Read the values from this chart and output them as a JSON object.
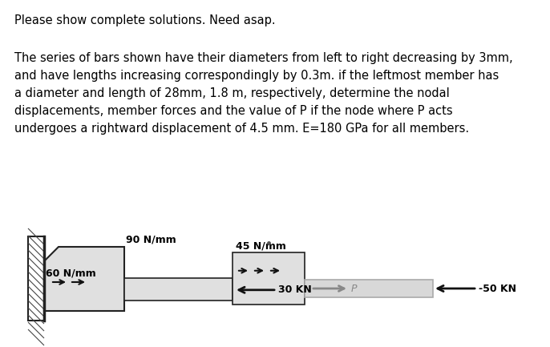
{
  "title_line1": "Please show complete solutions. Need asap.",
  "body_line1": "The series of bars shown have their diameters from left to right decreasing by 3mm,",
  "body_line2": "and have lengths increasing correspondingly by 0.3m. if the leftmost member has",
  "body_line3": "a diameter and length of 28mm, 1.8 m, respectively, determine the nodal",
  "body_line4": "displacements, member forces and the value of P if the node where P acts",
  "body_line5": "undergoes a rightward displacement of 4.5 mm. E=180 GPa for all members.",
  "label_60": "60 N/mm",
  "label_90": "90 N/mm",
  "label_45": "45 N/mm",
  "label_30KN": "30 KN",
  "label_50KN": "-50 KN",
  "label_P": "P",
  "bg_color": "#ffffff",
  "bar_fill": "#e0e0e0",
  "bar_edge": "#222222",
  "hatch_color": "#444444",
  "arrow_color": "#111111",
  "gray_color": "#888888",
  "wall_fill": "#cccccc"
}
